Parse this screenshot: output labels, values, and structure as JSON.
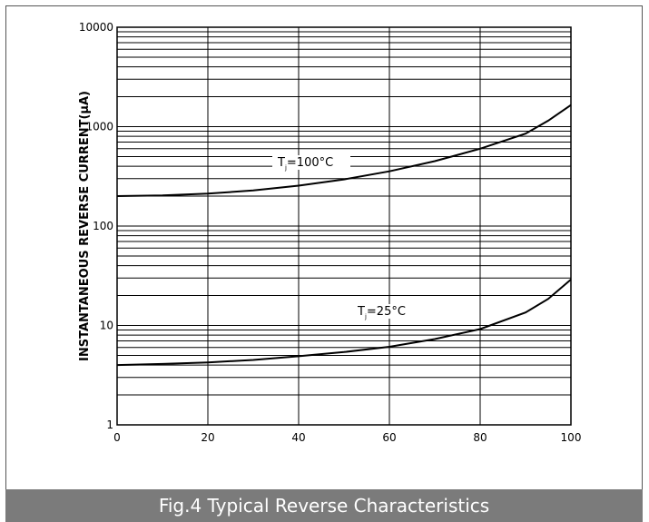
{
  "chart_data": {
    "type": "line",
    "title": "Fig.4 Typical Reverse Characteristics",
    "xlabel": "",
    "ylabel": "INSTANTANEOUS REVERSE CURRENT(μA)",
    "xlim": [
      0,
      100
    ],
    "ylim": [
      1,
      10000
    ],
    "yscale": "log",
    "grid": true,
    "x_ticks": [
      "0",
      "20",
      "40",
      "60",
      "80",
      "100"
    ],
    "y_ticks": [
      "1",
      "10",
      "100",
      "1000",
      "10000"
    ],
    "series": [
      {
        "name": "T_j=100°C",
        "label_main": "T",
        "label_sub": "j",
        "label_rest": "=100°C",
        "x": [
          0,
          10,
          20,
          30,
          40,
          50,
          60,
          70,
          80,
          90,
          95,
          100
        ],
        "values": [
          200,
          203,
          212,
          228,
          255,
          295,
          355,
          450,
          600,
          850,
          1150,
          1650
        ]
      },
      {
        "name": "T_j=25°C",
        "label_main": "T",
        "label_sub": "j",
        "label_rest": "=25°C",
        "x": [
          0,
          10,
          20,
          30,
          40,
          50,
          60,
          70,
          80,
          90,
          95,
          100
        ],
        "values": [
          4.0,
          4.1,
          4.25,
          4.5,
          4.9,
          5.4,
          6.1,
          7.3,
          9.2,
          13.5,
          18.5,
          29
        ]
      }
    ]
  },
  "colors": {
    "line": "#000000",
    "grid": "#000000",
    "caption_bg": "#7b7b7b",
    "caption_text": "#ffffff"
  }
}
